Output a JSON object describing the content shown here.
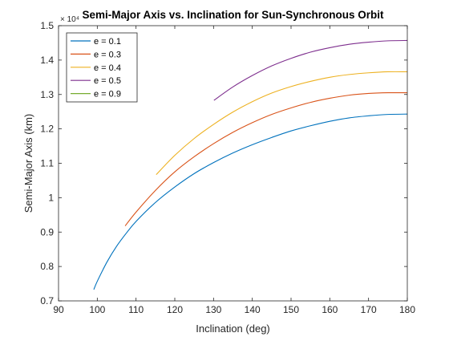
{
  "chart_data": {
    "type": "line",
    "title": "Semi-Major Axis vs. Inclination for Sun-Synchronous Orbit",
    "xlabel": "Inclination (deg)",
    "ylabel": "Semi-Major Axis (km)",
    "y_exponent_label": "× 10⁴",
    "xlim": [
      90,
      180
    ],
    "ylim": [
      0.7,
      1.5
    ],
    "xticks": [
      90,
      100,
      110,
      120,
      130,
      140,
      150,
      160,
      170,
      180
    ],
    "yticks": [
      0.7,
      0.8,
      0.9,
      1.0,
      1.1,
      1.2,
      1.3,
      1.4,
      1.5
    ],
    "ytick_labels": [
      "0.7",
      "0.8",
      "0.9",
      "1",
      "1.1",
      "1.2",
      "1.3",
      "1.4",
      "1.5"
    ],
    "grid": false,
    "legend_position": "top-left",
    "series": [
      {
        "name": "e = 0.1",
        "color": "#0072BD",
        "x": [
          99.1,
          100,
          102.5,
          105,
          107.5,
          110,
          115,
          120,
          125,
          130,
          135,
          140,
          145,
          150,
          155,
          160,
          165,
          170,
          175,
          180
        ],
        "y": [
          0.733,
          0.757,
          0.813,
          0.859,
          0.897,
          0.931,
          0.986,
          1.031,
          1.07,
          1.102,
          1.13,
          1.154,
          1.175,
          1.194,
          1.209,
          1.222,
          1.232,
          1.238,
          1.242,
          1.243
        ]
      },
      {
        "name": "e = 0.3",
        "color": "#D95319",
        "x": [
          107.2,
          110,
          115,
          120,
          125,
          130,
          135,
          140,
          145,
          150,
          155,
          160,
          165,
          170,
          175,
          180
        ],
        "y": [
          0.918,
          0.958,
          1.021,
          1.075,
          1.119,
          1.157,
          1.19,
          1.218,
          1.242,
          1.261,
          1.277,
          1.289,
          1.298,
          1.303,
          1.305,
          1.305
        ]
      },
      {
        "name": "e = 0.4",
        "color": "#EDB120",
        "x": [
          115.2,
          120,
          125,
          130,
          135,
          140,
          145,
          150,
          155,
          160,
          165,
          170,
          175,
          180
        ],
        "y": [
          1.067,
          1.123,
          1.172,
          1.213,
          1.249,
          1.279,
          1.304,
          1.323,
          1.338,
          1.35,
          1.358,
          1.363,
          1.366,
          1.366
        ]
      },
      {
        "name": "e = 0.5",
        "color": "#7E2F8E",
        "x": [
          130.1,
          135,
          140,
          145,
          150,
          155,
          160,
          165,
          170,
          175,
          180
        ],
        "y": [
          1.283,
          1.322,
          1.355,
          1.383,
          1.405,
          1.423,
          1.436,
          1.446,
          1.452,
          1.456,
          1.457
        ]
      },
      {
        "name": "e = 0.9",
        "color": "#77AC30",
        "x": [],
        "y": []
      }
    ]
  }
}
